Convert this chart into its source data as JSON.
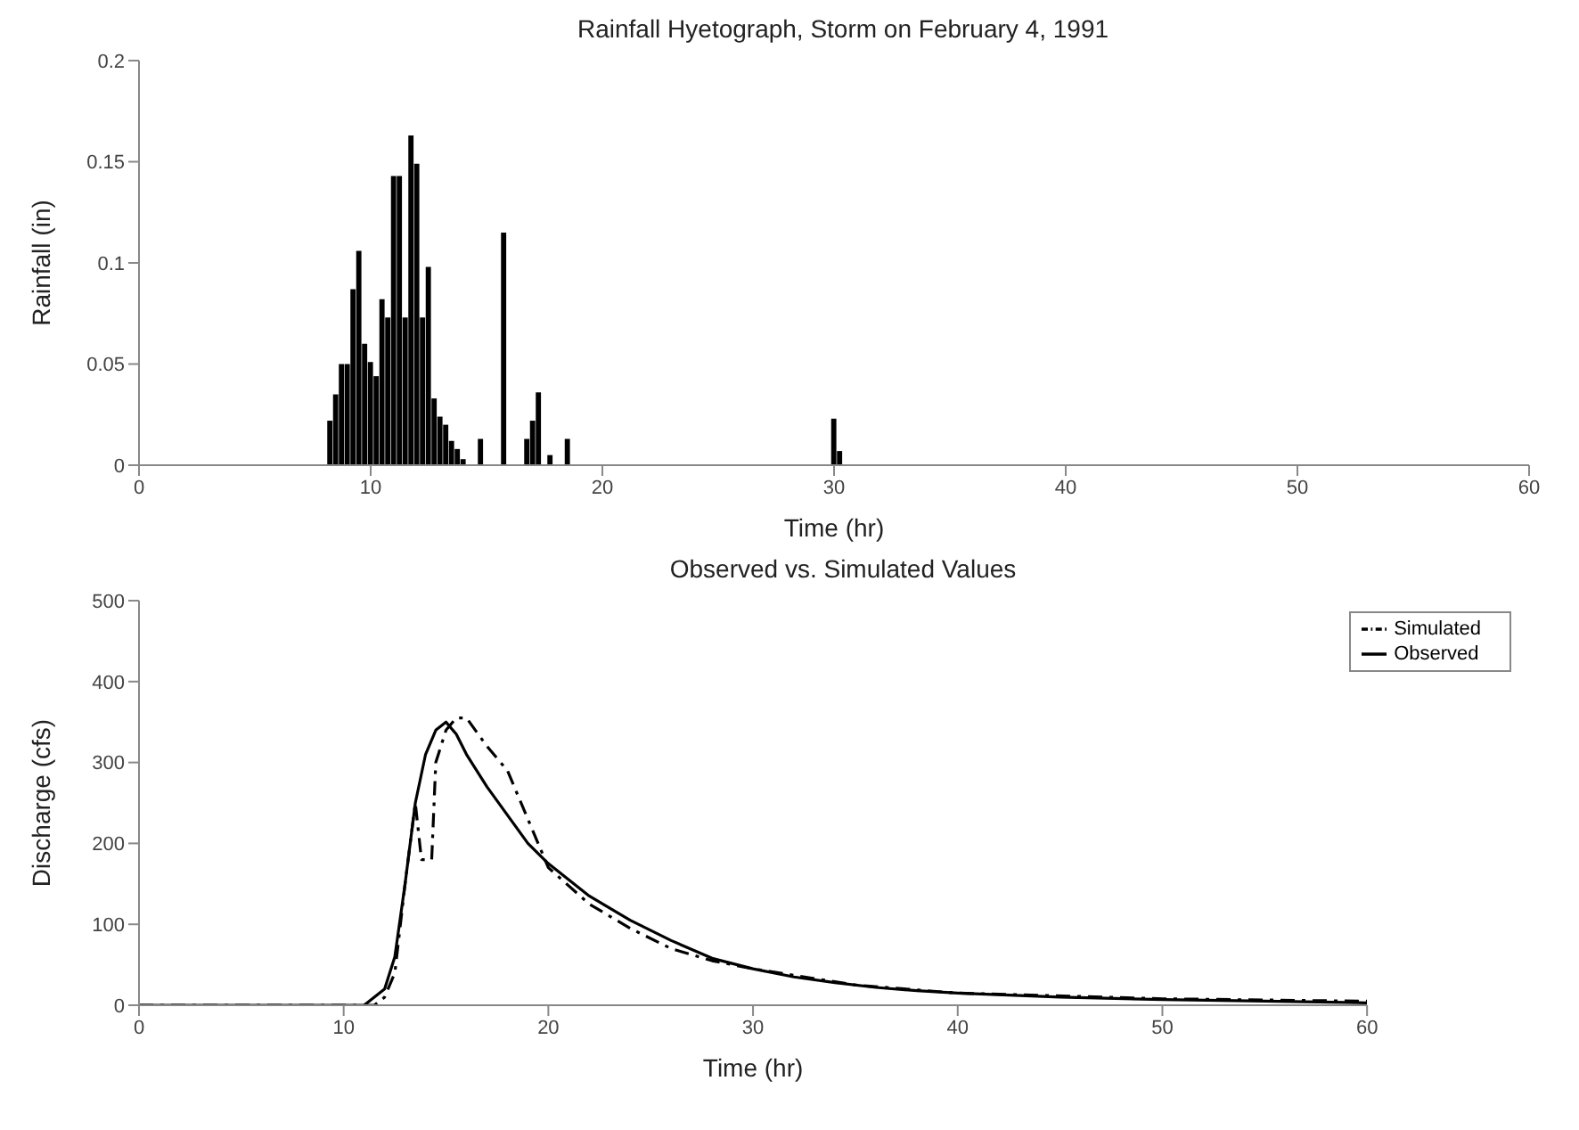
{
  "chart_data": [
    {
      "type": "bar",
      "title": "Rainfall Hyetograph, Storm on February 4, 1991",
      "xlabel": "Time (hr)",
      "ylabel": "Rainfall (in)",
      "x": [
        8.25,
        8.5,
        8.75,
        9.0,
        9.25,
        9.5,
        9.75,
        10.0,
        10.25,
        10.5,
        10.75,
        11.0,
        11.25,
        11.5,
        11.75,
        12.0,
        12.25,
        12.5,
        12.75,
        13.0,
        13.25,
        13.5,
        13.75,
        14.0,
        14.75,
        15.75,
        16.75,
        17.0,
        17.25,
        17.75,
        18.5,
        30.0,
        30.25
      ],
      "values": [
        0.022,
        0.035,
        0.05,
        0.05,
        0.087,
        0.106,
        0.06,
        0.051,
        0.044,
        0.082,
        0.073,
        0.143,
        0.143,
        0.073,
        0.163,
        0.149,
        0.073,
        0.098,
        0.033,
        0.024,
        0.02,
        0.012,
        0.008,
        0.003,
        0.013,
        0.115,
        0.013,
        0.022,
        0.036,
        0.005,
        0.013,
        0.023,
        0.007
      ],
      "color": "#000000",
      "xlim": [
        0,
        60
      ],
      "xticks": [
        0,
        10,
        20,
        30,
        40,
        50,
        60
      ],
      "ylim": [
        0,
        0.2
      ],
      "yticks": [
        0,
        0.05,
        0.1,
        0.15,
        0.2
      ],
      "grid": false,
      "legend": false
    },
    {
      "type": "line",
      "title": "Observed vs. Simulated Values",
      "xlabel": "Time (hr)",
      "ylabel": "Discharge (cfs)",
      "xlim": [
        0,
        60
      ],
      "xticks": [
        0,
        10,
        20,
        30,
        40,
        50,
        60
      ],
      "ylim": [
        0,
        500
      ],
      "yticks": [
        0,
        100,
        200,
        300,
        400,
        500
      ],
      "grid": false,
      "legend": "top right",
      "marker": "none",
      "series": [
        {
          "name": "Simulated",
          "color": "#000000",
          "line_style": "dashed",
          "x": [
            0,
            11.5,
            12,
            12.5,
            13,
            13.5,
            13.8,
            14.3,
            14.5,
            15,
            15.5,
            16,
            17,
            18,
            19,
            20,
            22,
            24,
            26,
            28,
            30,
            35,
            40,
            50,
            60
          ],
          "values": [
            0,
            0,
            10,
            40,
            150,
            250,
            180,
            180,
            300,
            340,
            355,
            355,
            320,
            290,
            230,
            170,
            125,
            95,
            70,
            55,
            45,
            25,
            15,
            8,
            5
          ]
        },
        {
          "name": "Observed",
          "color": "#000000",
          "line_style": "solid",
          "x": [
            0,
            11,
            12,
            12.5,
            13,
            13.5,
            14,
            14.5,
            15,
            15.5,
            16,
            17,
            18,
            19,
            20,
            22,
            24,
            26,
            28,
            30,
            32,
            34,
            36,
            38,
            40,
            45,
            50,
            55,
            60
          ],
          "values": [
            0,
            0,
            20,
            60,
            150,
            250,
            310,
            340,
            350,
            335,
            310,
            270,
            235,
            200,
            175,
            135,
            105,
            80,
            58,
            45,
            35,
            28,
            22,
            18,
            15,
            10,
            7,
            5,
            3
          ]
        }
      ]
    }
  ]
}
